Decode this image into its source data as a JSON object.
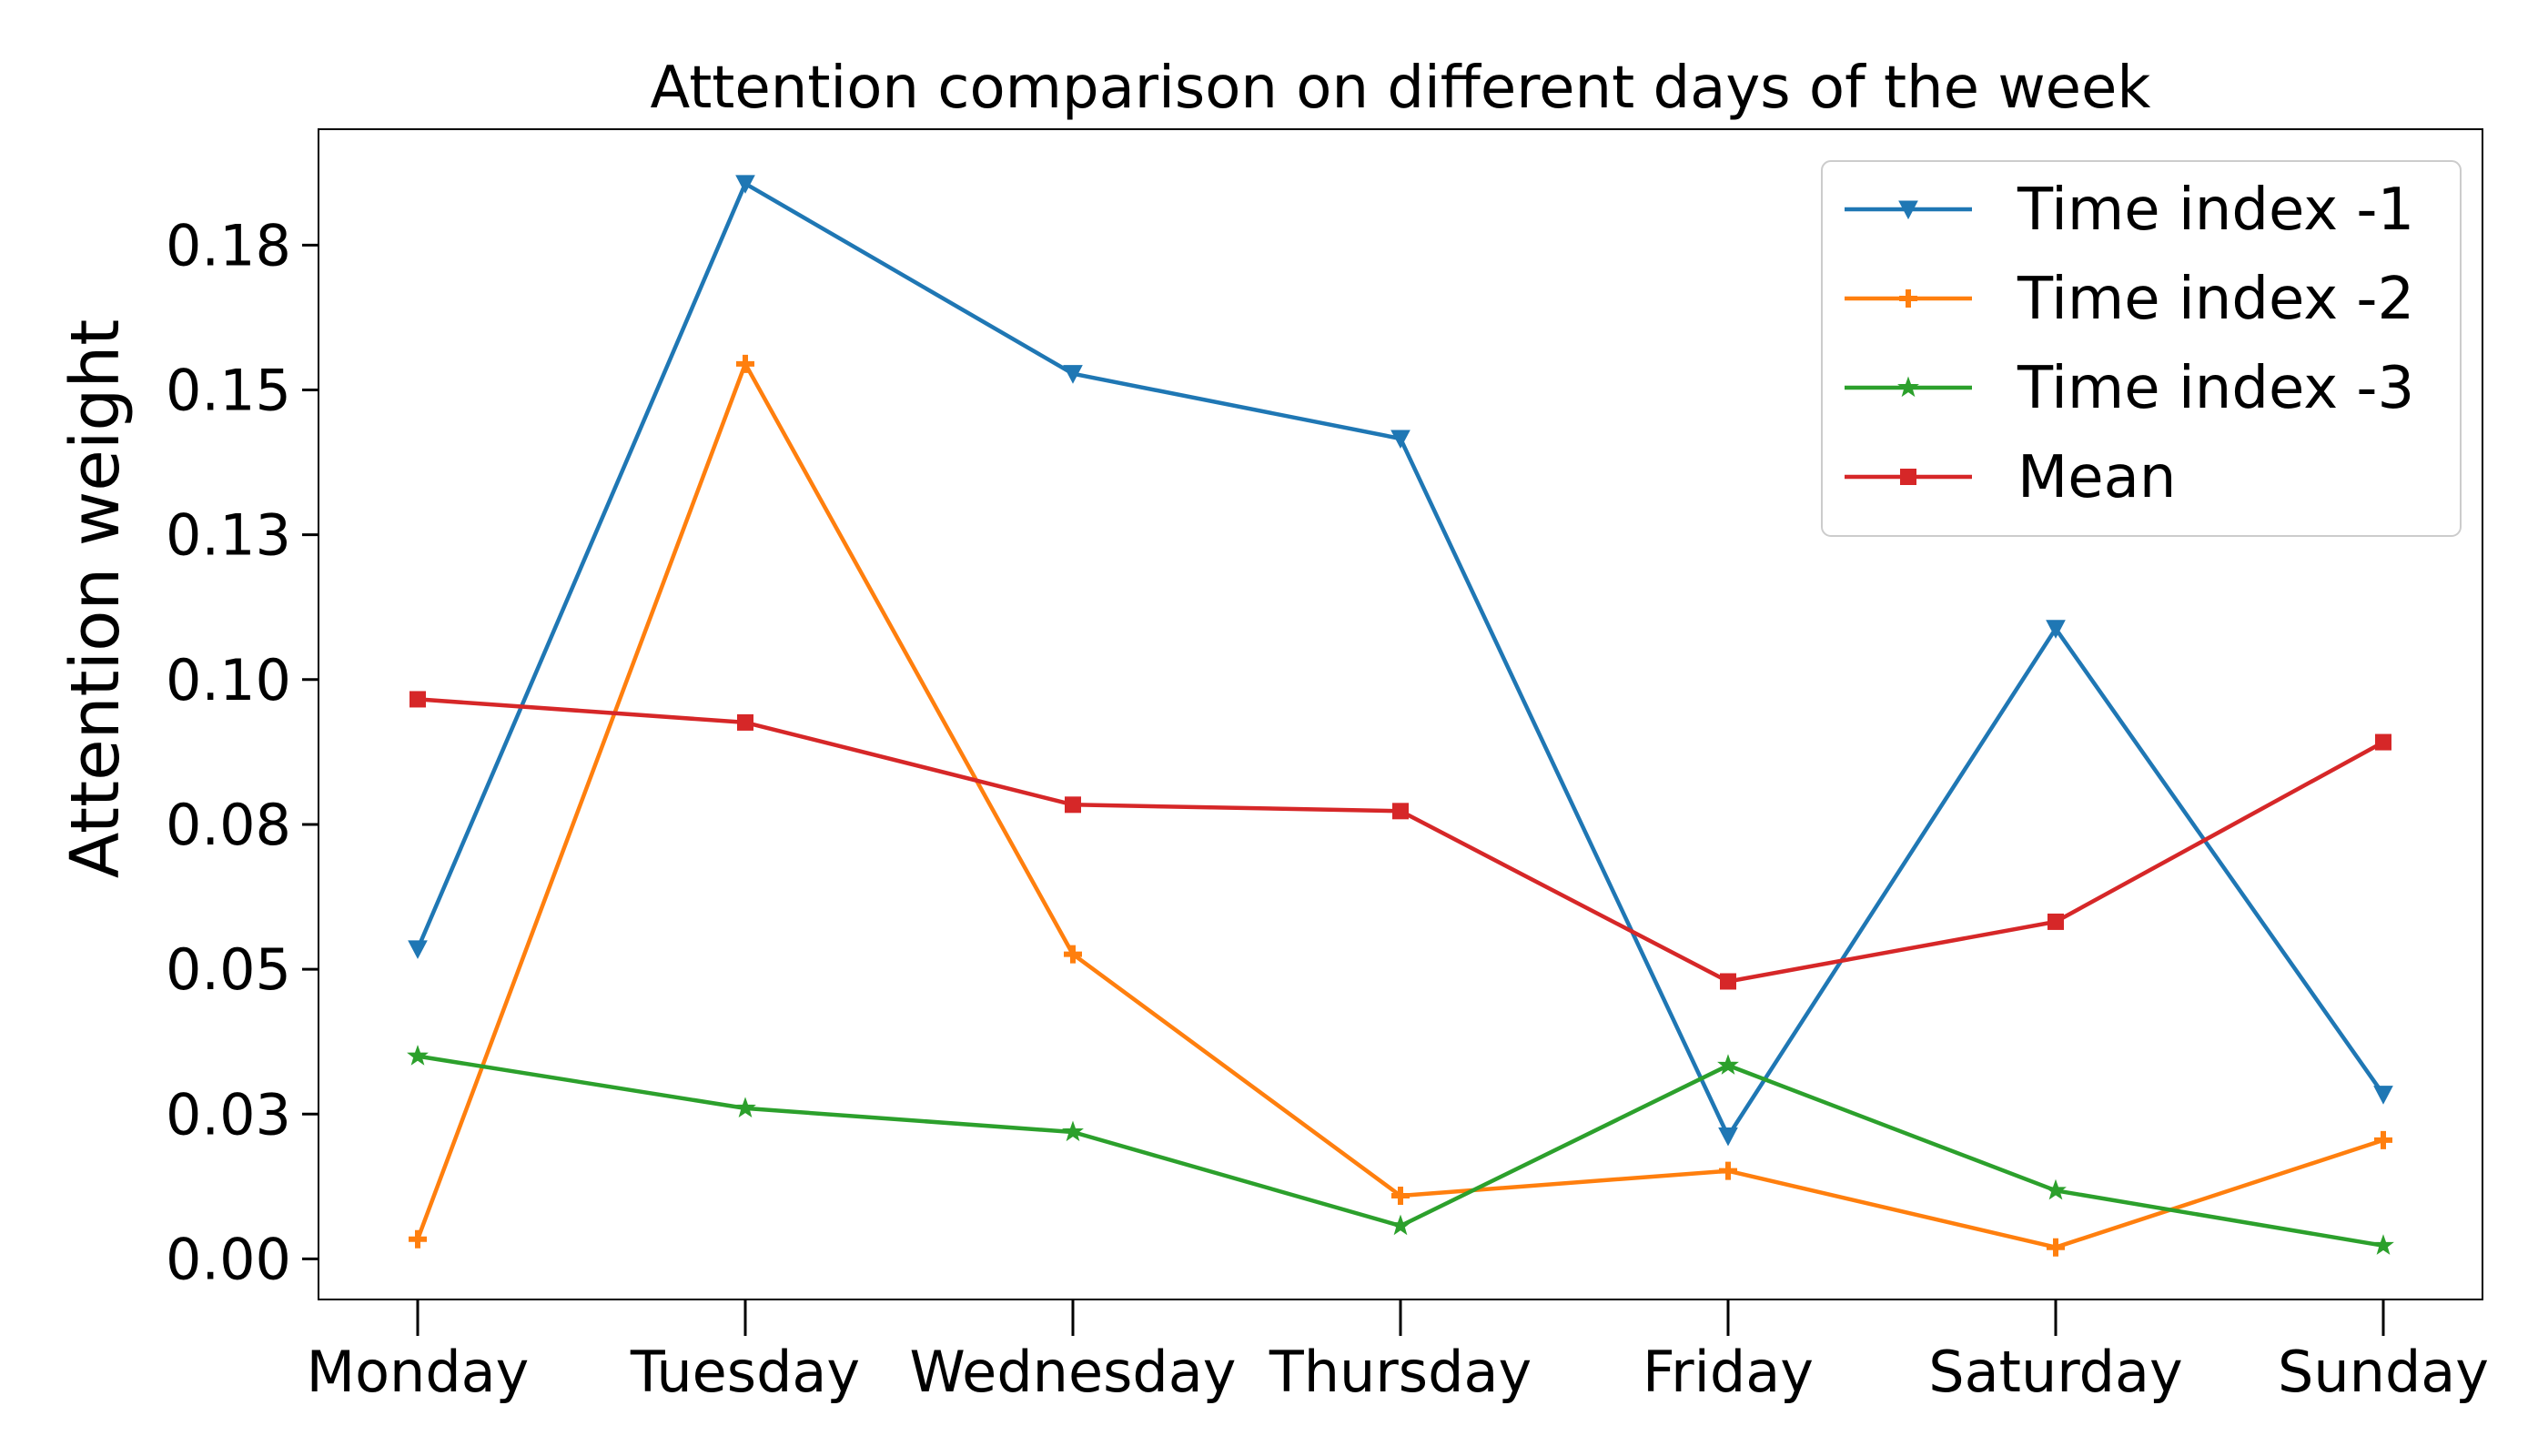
{
  "chart_data": {
    "type": "line",
    "title": "Attention comparison on different days of the week",
    "xlabel": "",
    "ylabel": "Attention weight",
    "categories": [
      "Monday",
      "Tuesday",
      "Wednesday",
      "Thursday",
      "Friday",
      "Saturday",
      "Sunday"
    ],
    "ylim": [
      -0.007,
      0.195
    ],
    "yticks": [
      0.0,
      0.025,
      0.05,
      0.075,
      0.1,
      0.125,
      0.15,
      0.175
    ],
    "ytick_labels": [
      "0.00",
      "0.03",
      "0.05",
      "0.08",
      "0.10",
      "0.13",
      "0.15",
      "0.18"
    ],
    "grid": false,
    "legend_position": "top-right",
    "series": [
      {
        "name": "Time index -1",
        "color": "#1f77b4",
        "marker": "triangle-down",
        "values": [
          0.0535,
          0.1856,
          0.1528,
          0.1416,
          0.0212,
          0.1088,
          0.0284
        ]
      },
      {
        "name": "Time index -2",
        "color": "#ff7f0e",
        "marker": "plus",
        "values": [
          0.0034,
          0.1545,
          0.0526,
          0.0109,
          0.0152,
          0.002,
          0.0205
        ]
      },
      {
        "name": "Time index -3",
        "color": "#2ca02c",
        "marker": "star",
        "values": [
          0.035,
          0.026,
          0.0219,
          0.0057,
          0.0334,
          0.0118,
          0.0023
        ]
      },
      {
        "name": "Mean",
        "color": "#d62728",
        "marker": "square",
        "values": [
          0.0966,
          0.0926,
          0.0784,
          0.0773,
          0.0479,
          0.0582,
          0.0892
        ]
      }
    ]
  }
}
